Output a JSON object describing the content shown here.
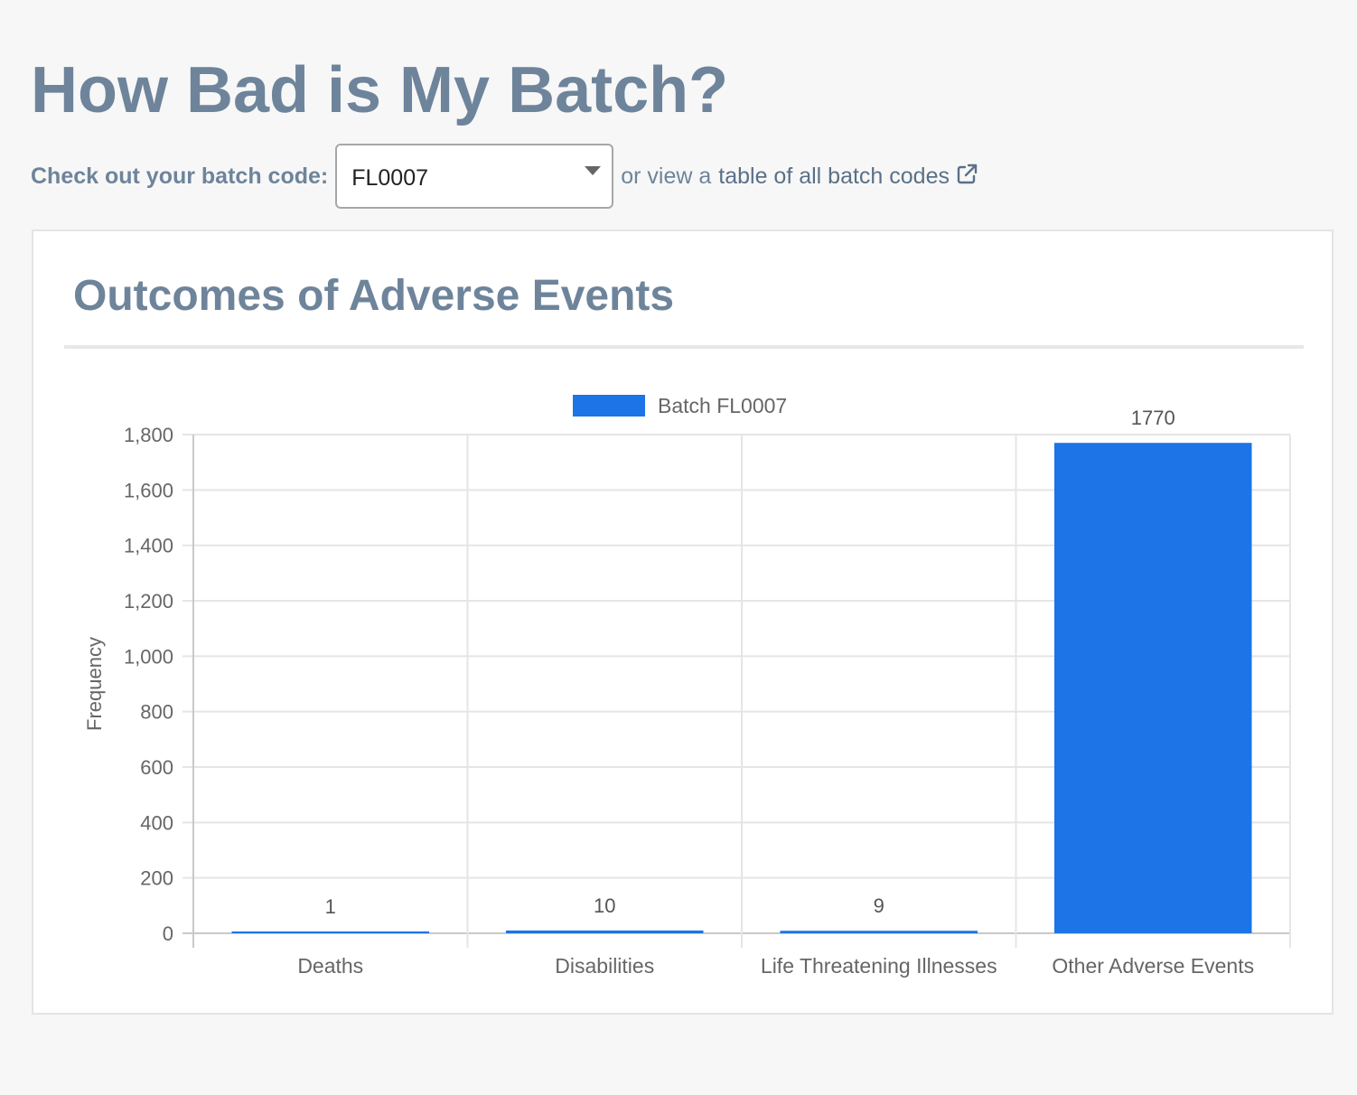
{
  "page": {
    "title": "How Bad is My Batch?"
  },
  "batch_picker": {
    "label": "Check out your batch code:",
    "selected_value": "FL0007",
    "or_text": "or view a",
    "link_text": "table of all batch codes"
  },
  "card": {
    "title": "Outcomes of Adverse Events"
  },
  "colors": {
    "bar": "#1c74e6",
    "title": "#6e849b",
    "grid": "#e5e5e5",
    "axis_text": "#666666"
  },
  "chart_data": {
    "type": "bar",
    "categories": [
      "Deaths",
      "Disabilities",
      "Life Threatening Illnesses",
      "Other Adverse Events"
    ],
    "series": [
      {
        "name": "Batch FL0007",
        "values": [
          1,
          10,
          9,
          1770
        ]
      }
    ],
    "data_labels": [
      "1",
      "10",
      "9",
      "1770"
    ],
    "ylabel": "Frequency",
    "xlabel": "",
    "ylim": [
      0,
      1800
    ],
    "yticks": [
      0,
      200,
      400,
      600,
      800,
      1000,
      1200,
      1400,
      1600,
      1800
    ],
    "ytick_labels": [
      "0",
      "200",
      "400",
      "600",
      "800",
      "1,000",
      "1,200",
      "1,400",
      "1,600",
      "1,800"
    ],
    "grid": true,
    "legend_position": "top-center"
  }
}
